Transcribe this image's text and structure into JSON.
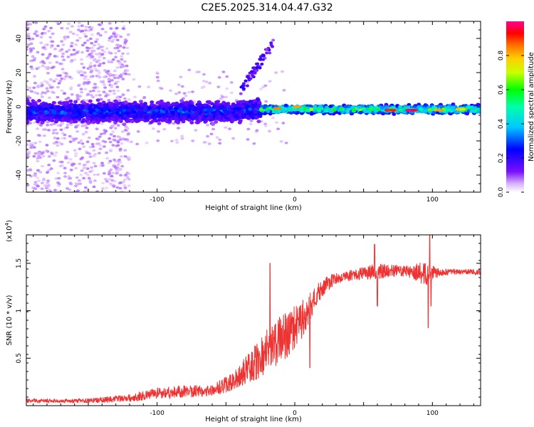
{
  "title": "C2E5.2025.314.04.47.G32",
  "chart_data": [
    {
      "type": "heatmap",
      "title": "C2E5.2025.314.04.47.G32",
      "xlabel": "Height of straight line (km)",
      "ylabel": "Frequency (Hz)",
      "xlim": [
        -195,
        135
      ],
      "ylim": [
        -50,
        50
      ],
      "x_ticks": [
        -100,
        0,
        100
      ],
      "x_tick_labels": [
        "-100",
        "0",
        "100"
      ],
      "y_ticks": [
        -40,
        -20,
        0,
        20,
        40
      ],
      "y_tick_labels": [
        "-40",
        "-20",
        "0",
        "20",
        "40"
      ],
      "colorbar": {
        "label": "Normalized spectral amplitude",
        "range": [
          0,
          1
        ],
        "ticks": [
          0.0,
          0.2,
          0.4,
          0.6,
          0.8
        ],
        "tick_labels": [
          "0.0",
          "0.2",
          "0.4",
          "0.6",
          "0.8"
        ],
        "colors": [
          "#ffffff",
          "#b070ff",
          "#5a00e6",
          "#0000ff",
          "#00c8ff",
          "#00ffaa",
          "#00ff00",
          "#c8ff00",
          "#ffd000",
          "#ff7000",
          "#ff0000",
          "#ff00a0"
        ]
      },
      "bands": [
        {
          "x0": -195,
          "x1": -25,
          "center_hz": -3,
          "halfwidth_hz": 5,
          "amplitude": 0.3
        },
        {
          "x0": -25,
          "x1": 135,
          "center_hz": -1.5,
          "halfwidth_hz": 2,
          "amplitude": 0.6
        }
      ],
      "hot_spots": [
        {
          "x": -12,
          "hz": -1,
          "amplitude": 0.9
        },
        {
          "x": 0,
          "hz": 0,
          "amplitude": 0.85
        },
        {
          "x": 70,
          "hz": -2,
          "amplitude": 0.95
        },
        {
          "x": 85,
          "hz": -2,
          "amplitude": 1.0
        },
        {
          "x": 105,
          "hz": -2,
          "amplitude": 0.9
        },
        {
          "x": 120,
          "hz": -1.5,
          "amplitude": 0.8
        }
      ]
    },
    {
      "type": "line",
      "xlabel": "Height of straight line (km)",
      "ylabel": "SNR (10 * v/v)",
      "y_scale_label": "(x10",
      "y_scale_exponent": "4",
      "xlim": [
        -195,
        135
      ],
      "ylim": [
        0,
        1.8
      ],
      "x_ticks": [
        -100,
        0,
        100
      ],
      "x_tick_labels": [
        "-100",
        "0",
        "100"
      ],
      "y_ticks": [
        0.5,
        1.0,
        1.5
      ],
      "y_tick_labels": [
        "0.5",
        "1",
        "1.5"
      ],
      "series": [
        {
          "name": "SNR",
          "color": "#ee3333",
          "envelope": {
            "x": [
              -195,
              -160,
              -140,
              -120,
              -100,
              -80,
              -60,
              -45,
              -35,
              -25,
              -15,
              -5,
              5,
              15,
              25,
              35,
              45,
              55,
              65,
              75,
              85,
              95,
              105,
              115,
              125,
              135
            ],
            "y": [
              0.05,
              0.05,
              0.06,
              0.08,
              0.13,
              0.15,
              0.16,
              0.25,
              0.38,
              0.5,
              0.65,
              0.75,
              0.9,
              1.15,
              1.3,
              1.36,
              1.38,
              1.41,
              1.42,
              1.42,
              1.41,
              1.4,
              1.4,
              1.41,
              1.41,
              1.41
            ],
            "noise": [
              0.02,
              0.02,
              0.03,
              0.04,
              0.06,
              0.07,
              0.06,
              0.1,
              0.15,
              0.22,
              0.25,
              0.25,
              0.2,
              0.12,
              0.08,
              0.06,
              0.06,
              0.08,
              0.08,
              0.06,
              0.07,
              0.14,
              0.04,
              0.03,
              0.03,
              0.03
            ]
          },
          "spikes": [
            {
              "x": -18,
              "y": 1.5
            },
            {
              "x": 11,
              "y": 0.4
            },
            {
              "x": 58,
              "y": 1.7
            },
            {
              "x": 60,
              "y": 1.05
            },
            {
              "x": 97,
              "y": 0.82
            },
            {
              "x": 98,
              "y": 1.8
            },
            {
              "x": 99,
              "y": 1.05
            }
          ]
        }
      ]
    }
  ]
}
